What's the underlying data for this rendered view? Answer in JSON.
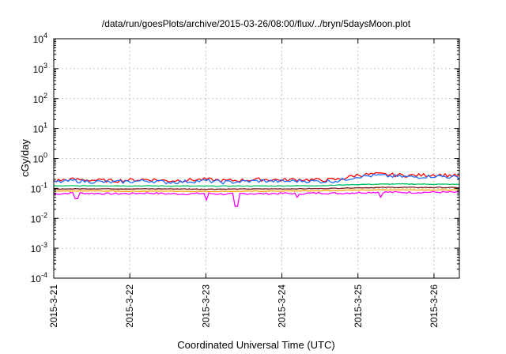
{
  "chart_data": {
    "type": "line",
    "title": "/data/run/goesPlots/archive/2015-03-26/08:00/flux/../bryn/5daysMoon.plot",
    "xlabel": "Coordinated Universal Time (UTC)",
    "ylabel": "cGy/day",
    "yscale": "log",
    "ylim": [
      0.0001,
      10000
    ],
    "xlim": [
      "2015-03-21 00:00",
      "2015-03-26 08:00"
    ],
    "x_ticks": [
      "2015-3-21",
      "2015-3-22",
      "2015-3-23",
      "2015-3-24",
      "2015-3-25",
      "2015-3-26"
    ],
    "y_ticks": [
      {
        "base": "10",
        "exp": "-4",
        "value": 0.0001
      },
      {
        "base": "10",
        "exp": "-3",
        "value": 0.001
      },
      {
        "base": "10",
        "exp": "-2",
        "value": 0.01
      },
      {
        "base": "10",
        "exp": "-1",
        "value": 0.1
      },
      {
        "base": "10",
        "exp": "0",
        "value": 1
      },
      {
        "base": "10",
        "exp": "1",
        "value": 10
      },
      {
        "base": "10",
        "exp": "2",
        "value": 100
      },
      {
        "base": "10",
        "exp": "3",
        "value": 1000
      },
      {
        "base": "10",
        "exp": "4",
        "value": 10000
      }
    ],
    "grid": true,
    "legend": "none",
    "series": [
      {
        "color": "#ff00ff",
        "x_days": [
          0,
          0.25,
          0.5,
          0.75,
          1,
          1.25,
          1.5,
          1.75,
          2,
          2.25,
          2.5,
          2.75,
          3,
          3.25,
          3.5,
          3.75,
          4,
          4.25,
          4.5,
          4.75,
          5,
          5.25,
          5.33
        ],
        "values": [
          0.065,
          0.07,
          0.068,
          0.066,
          0.067,
          0.07,
          0.066,
          0.065,
          0.068,
          0.064,
          0.067,
          0.066,
          0.068,
          0.067,
          0.07,
          0.068,
          0.072,
          0.075,
          0.074,
          0.073,
          0.075,
          0.074,
          0.073
        ],
        "dips": [
          {
            "x_day": 0.3,
            "value": 0.045
          },
          {
            "x_day": 2.0,
            "value": 0.04
          },
          {
            "x_day": 2.4,
            "value": 0.025
          },
          {
            "x_day": 3.2,
            "value": 0.05
          },
          {
            "x_day": 4.3,
            "value": 0.05
          }
        ]
      },
      {
        "color": "#ffa500",
        "x_days": [
          0,
          0.5,
          1,
          1.5,
          2,
          2.5,
          3,
          3.5,
          4,
          4.5,
          5,
          5.33
        ],
        "values": [
          0.08,
          0.082,
          0.08,
          0.081,
          0.079,
          0.08,
          0.081,
          0.083,
          0.088,
          0.09,
          0.089,
          0.088
        ]
      },
      {
        "color": "#7f1d1d",
        "x_days": [
          0,
          0.5,
          1,
          1.5,
          2,
          2.5,
          3,
          3.5,
          4,
          4.5,
          5,
          5.33
        ],
        "values": [
          0.095,
          0.097,
          0.096,
          0.096,
          0.094,
          0.095,
          0.096,
          0.098,
          0.105,
          0.108,
          0.107,
          0.106
        ]
      },
      {
        "color": "#00c060",
        "x_days": [
          0,
          0.5,
          1,
          1.5,
          2,
          2.5,
          3,
          3.5,
          4,
          4.5,
          5,
          5.33
        ],
        "values": [
          0.12,
          0.122,
          0.121,
          0.12,
          0.118,
          0.12,
          0.121,
          0.123,
          0.135,
          0.14,
          0.138,
          0.136
        ]
      },
      {
        "color": "#ff0000",
        "x_days": [
          0,
          0.25,
          0.5,
          0.75,
          1,
          1.25,
          1.5,
          1.75,
          2,
          2.25,
          2.5,
          2.75,
          3,
          3.25,
          3.5,
          3.75,
          4,
          4.25,
          4.5,
          4.75,
          5,
          5.25,
          5.33
        ],
        "values": [
          0.18,
          0.2,
          0.19,
          0.18,
          0.19,
          0.2,
          0.18,
          0.19,
          0.2,
          0.18,
          0.19,
          0.2,
          0.19,
          0.2,
          0.19,
          0.2,
          0.28,
          0.3,
          0.28,
          0.27,
          0.29,
          0.27,
          0.26
        ]
      },
      {
        "color": "#1e6fff",
        "x_days": [
          0,
          0.25,
          0.5,
          0.75,
          1,
          1.25,
          1.5,
          1.75,
          2,
          2.25,
          2.5,
          2.75,
          3,
          3.25,
          3.5,
          3.75,
          4,
          4.25,
          4.5,
          4.75,
          5,
          5.25,
          5.33
        ],
        "values": [
          0.16,
          0.18,
          0.17,
          0.16,
          0.17,
          0.18,
          0.16,
          0.17,
          0.18,
          0.16,
          0.17,
          0.18,
          0.17,
          0.18,
          0.17,
          0.18,
          0.25,
          0.27,
          0.25,
          0.24,
          0.26,
          0.24,
          0.23
        ]
      }
    ]
  }
}
